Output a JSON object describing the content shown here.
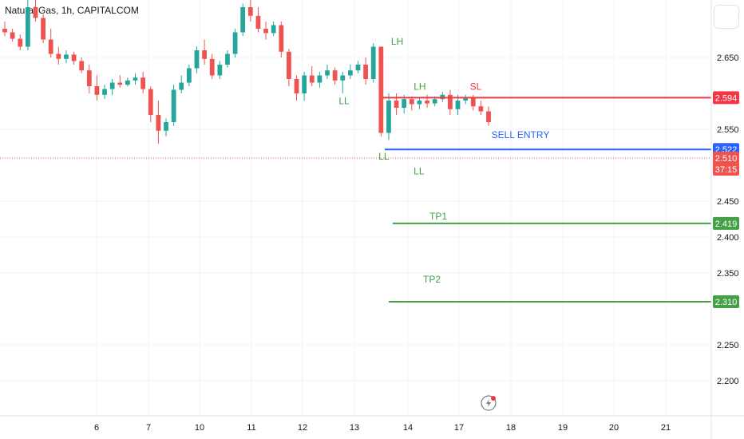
{
  "header": {
    "title": "Natural Gas, 1h, CAPITALCOM"
  },
  "colors": {
    "up": "#26a69a",
    "down": "#ef5350",
    "sl": "#f23645",
    "entry": "#2962ff",
    "tp": "#43a047",
    "grid": "#f0f3fa",
    "axis": "#131722"
  },
  "chart_data": {
    "type": "candlestick",
    "title": "Natural Gas, 1h, CAPITALCOM",
    "x_tick_labels": [
      "6",
      "7",
      "10",
      "11",
      "12",
      "13",
      "14",
      "17",
      "18",
      "19",
      "20",
      "21"
    ],
    "y_tick_labels": [
      "2.650",
      "2.550",
      "2.450",
      "2.400",
      "2.350",
      "2.250",
      "2.200"
    ],
    "y_range": [
      2.16,
      2.74
    ],
    "grid": true,
    "levels": [
      {
        "label": "SL",
        "price": 2.594,
        "price_text": "2.594",
        "color": "#f23645"
      },
      {
        "label": "SELL ENTRY",
        "price": 2.522,
        "price_text": "2.522",
        "color": "#2962ff"
      },
      {
        "label": "TP1",
        "price": 2.419,
        "price_text": "2.419",
        "color": "#43a047"
      },
      {
        "label": "TP2",
        "price": 2.31,
        "price_text": "2.310",
        "color": "#43a047"
      }
    ],
    "last_price": {
      "price": 2.51,
      "price_text": "2.510",
      "countdown": "37:15"
    },
    "annotations": [
      {
        "text": "LH",
        "x_day": 13.8,
        "price": 2.668,
        "color": "#43a047"
      },
      {
        "text": "LL",
        "x_day": 12.8,
        "price": 2.585,
        "color": "#43a047"
      },
      {
        "text": "LH",
        "x_day": 14.7,
        "price": 2.605,
        "color": "#43a047"
      },
      {
        "text": "LL",
        "x_day": 13.55,
        "price": 2.508,
        "color": "#43a047"
      },
      {
        "text": "LL",
        "x_day": 14.65,
        "price": 2.487,
        "color": "#43a047"
      }
    ],
    "candles": [
      [
        2.69,
        2.7,
        2.68,
        2.685
      ],
      [
        2.685,
        2.69,
        2.672,
        2.676
      ],
      [
        2.676,
        2.682,
        2.66,
        2.665
      ],
      [
        2.665,
        2.73,
        2.66,
        2.72
      ],
      [
        2.72,
        2.735,
        2.7,
        2.705
      ],
      [
        2.705,
        2.71,
        2.67,
        2.675
      ],
      [
        2.675,
        2.69,
        2.65,
        2.655
      ],
      [
        2.655,
        2.665,
        2.64,
        2.648
      ],
      [
        2.648,
        2.66,
        2.642,
        2.654
      ],
      [
        2.654,
        2.658,
        2.64,
        2.645
      ],
      [
        2.645,
        2.65,
        2.628,
        2.632
      ],
      [
        2.632,
        2.64,
        2.6,
        2.61
      ],
      [
        2.61,
        2.625,
        2.59,
        2.598
      ],
      [
        2.598,
        2.612,
        2.592,
        2.606
      ],
      [
        2.606,
        2.62,
        2.598,
        2.615
      ],
      [
        2.615,
        2.625,
        2.608,
        2.612
      ],
      [
        2.612,
        2.622,
        2.61,
        2.618
      ],
      [
        2.618,
        2.628,
        2.612,
        2.622
      ],
      [
        2.622,
        2.63,
        2.6,
        2.606
      ],
      [
        2.606,
        2.61,
        2.56,
        2.57
      ],
      [
        2.57,
        2.59,
        2.53,
        2.548
      ],
      [
        2.548,
        2.565,
        2.54,
        2.56
      ],
      [
        2.56,
        2.612,
        2.555,
        2.605
      ],
      [
        2.605,
        2.625,
        2.6,
        2.615
      ],
      [
        2.615,
        2.64,
        2.61,
        2.635
      ],
      [
        2.635,
        2.665,
        2.628,
        2.66
      ],
      [
        2.66,
        2.675,
        2.64,
        2.648
      ],
      [
        2.648,
        2.655,
        2.62,
        2.625
      ],
      [
        2.625,
        2.645,
        2.62,
        2.64
      ],
      [
        2.64,
        2.66,
        2.636,
        2.655
      ],
      [
        2.655,
        2.69,
        2.65,
        2.685
      ],
      [
        2.685,
        2.725,
        2.68,
        2.72
      ],
      [
        2.72,
        2.73,
        2.7,
        2.708
      ],
      [
        2.708,
        2.72,
        2.685,
        2.69
      ],
      [
        2.69,
        2.7,
        2.675,
        2.684
      ],
      [
        2.684,
        2.7,
        2.68,
        2.695
      ],
      [
        2.695,
        2.7,
        2.65,
        2.658
      ],
      [
        2.658,
        2.662,
        2.61,
        2.62
      ],
      [
        2.62,
        2.625,
        2.59,
        2.6
      ],
      [
        2.6,
        2.63,
        2.59,
        2.625
      ],
      [
        2.625,
        2.638,
        2.61,
        2.615
      ],
      [
        2.615,
        2.63,
        2.608,
        2.625
      ],
      [
        2.625,
        2.64,
        2.62,
        2.632
      ],
      [
        2.632,
        2.636,
        2.612,
        2.618
      ],
      [
        2.618,
        2.63,
        2.6,
        2.625
      ],
      [
        2.625,
        2.64,
        2.62,
        2.632
      ],
      [
        2.632,
        2.645,
        2.628,
        2.64
      ],
      [
        2.64,
        2.65,
        2.612,
        2.62
      ],
      [
        2.62,
        2.67,
        2.615,
        2.665
      ],
      [
        2.665,
        2.66,
        2.54,
        2.545
      ],
      [
        2.545,
        2.6,
        2.535,
        2.59
      ],
      [
        2.59,
        2.6,
        2.57,
        2.58
      ],
      [
        2.58,
        2.598,
        2.572,
        2.592
      ],
      [
        2.592,
        2.596,
        2.576,
        2.585
      ],
      [
        2.585,
        2.595,
        2.578,
        2.59
      ],
      [
        2.59,
        2.598,
        2.58,
        2.586
      ],
      [
        2.586,
        2.596,
        2.582,
        2.592
      ],
      [
        2.592,
        2.602,
        2.588,
        2.598
      ],
      [
        2.598,
        2.605,
        2.57,
        2.578
      ],
      [
        2.578,
        2.598,
        2.57,
        2.59
      ],
      [
        2.59,
        2.598,
        2.585,
        2.594
      ],
      [
        2.594,
        2.598,
        2.576,
        2.582
      ],
      [
        2.582,
        2.59,
        2.57,
        2.575
      ],
      [
        2.575,
        2.582,
        2.555,
        2.56
      ]
    ]
  }
}
